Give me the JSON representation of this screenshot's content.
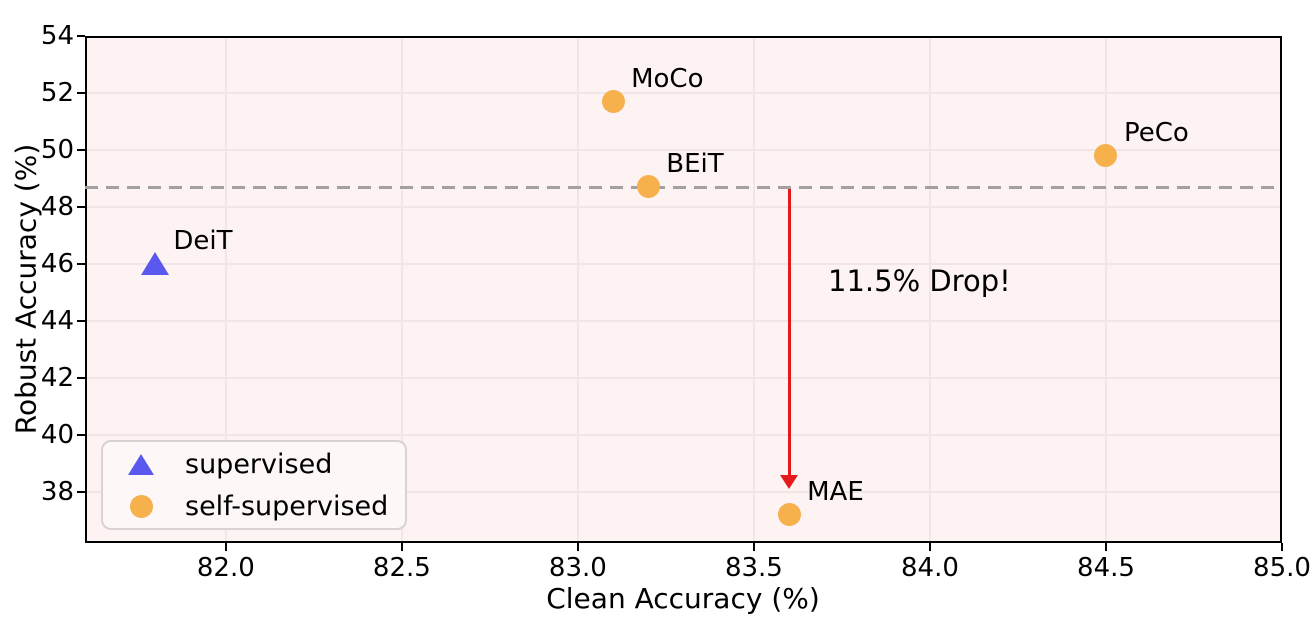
{
  "chart_data": {
    "type": "scatter",
    "title": "",
    "xlabel": "Clean Accuracy (%)",
    "ylabel": "Robust Accuracy (%)",
    "xlim": [
      81.6,
      85.0
    ],
    "ylim": [
      36.2,
      54.0
    ],
    "x_ticks": [
      "82.0",
      "82.5",
      "83.0",
      "83.5",
      "84.0",
      "84.5",
      "85.0"
    ],
    "y_ticks": [
      "38",
      "40",
      "42",
      "44",
      "46",
      "48",
      "50",
      "52",
      "54"
    ],
    "grid": true,
    "series": [
      {
        "name": "supervised",
        "marker": "triangle",
        "color": "#5a58ee",
        "points": [
          {
            "label": "DeiT",
            "x": 81.8,
            "y": 46.0
          }
        ]
      },
      {
        "name": "self-supervised",
        "marker": "circle",
        "color": "#f6b04c",
        "points": [
          {
            "label": "MoCo",
            "x": 83.1,
            "y": 51.7
          },
          {
            "label": "BEiT",
            "x": 83.2,
            "y": 48.7
          },
          {
            "label": "PeCo",
            "x": 84.5,
            "y": 49.8
          },
          {
            "label": "MAE",
            "x": 83.6,
            "y": 37.2
          }
        ]
      }
    ],
    "reference_line": {
      "y": 48.7,
      "style": "dashed",
      "color": "#a3a0a0"
    },
    "annotation": {
      "text": "11.5% Drop!",
      "arrow_x": 83.6,
      "arrow_from_y": 48.7,
      "arrow_to_y": 38.1,
      "arrow_color": "#e41a1c",
      "text_color": "#000000"
    },
    "legend": {
      "position": "lower-left"
    },
    "colors": {
      "plot_background": "#fdf3f2",
      "grid": "#f0e6e5",
      "spine": "#000000",
      "text": "#000000"
    }
  }
}
